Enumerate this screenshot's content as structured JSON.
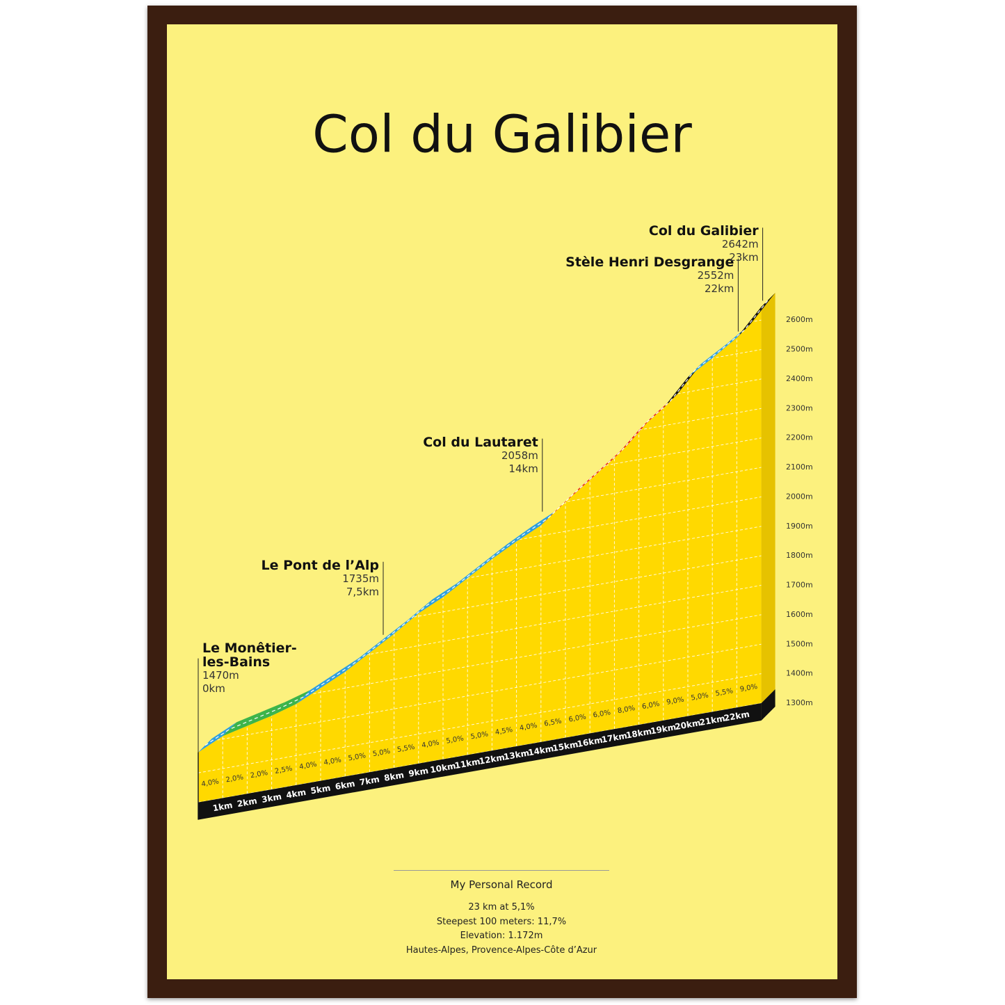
{
  "chart_data": {
    "type": "climb",
    "title": "Col du Galibier",
    "segments": {
      "values": [
        4.0,
        2.0,
        2.0,
        2.5,
        4.0,
        4.0,
        5.0,
        5.0,
        5.5,
        4.0,
        5.0,
        5.0,
        4.5,
        4.0,
        6.5,
        6.0,
        6.0,
        8.0,
        6.0,
        9.0,
        5.0,
        5.5,
        9.0
      ],
      "value_labels": [
        "4,0%",
        "2,0%",
        "2,0%",
        "2,5%",
        "4,0%",
        "4,0%",
        "5,0%",
        "5,0%",
        "5,5%",
        "4,0%",
        "5,0%",
        "5,0%",
        "4,5%",
        "4,0%",
        "6,5%",
        "6,0%",
        "6,0%",
        "8,0%",
        "6,0%",
        "9,0%",
        "5,0%",
        "5,5%",
        "9,0%"
      ],
      "colors": [
        "#2e9fdf",
        "#3cb44b",
        "#3cb44b",
        "#3cb44b",
        "#2e9fdf",
        "#2e9fdf",
        "#2e9fdf",
        "#2e9fdf",
        "#2e9fdf",
        "#2e9fdf",
        "#2e9fdf",
        "#2e9fdf",
        "#2e9fdf",
        "#2e9fdf",
        "#e52420",
        "#e52420",
        "#e52420",
        "#e52420",
        "#e52420",
        "#111111",
        "#2e9fdf",
        "#2e9fdf",
        "#111111"
      ]
    },
    "x_labels": [
      "1km",
      "2km",
      "3km",
      "4km",
      "5km",
      "6km",
      "7km",
      "8km",
      "9km",
      "10km",
      "11km",
      "12km",
      "13km",
      "14km",
      "15km",
      "16km",
      "17km",
      "18km",
      "19km",
      "20km",
      "21km",
      "22km"
    ],
    "ylim": [
      1300,
      2650
    ],
    "yticks": [
      {
        "value": 1300,
        "label": "1300m"
      },
      {
        "value": 1400,
        "label": "1400m"
      },
      {
        "value": 1500,
        "label": "1500m"
      },
      {
        "value": 1600,
        "label": "1600m"
      },
      {
        "value": 1700,
        "label": "1700m"
      },
      {
        "value": 1800,
        "label": "1800m"
      },
      {
        "value": 1900,
        "label": "1900m"
      },
      {
        "value": 2000,
        "label": "2000m"
      },
      {
        "value": 2100,
        "label": "2100m"
      },
      {
        "value": 2200,
        "label": "2200m"
      },
      {
        "value": 2300,
        "label": "2300m"
      },
      {
        "value": 2400,
        "label": "2400m"
      },
      {
        "value": 2500,
        "label": "2500m"
      },
      {
        "value": 2600,
        "label": "2600m"
      }
    ],
    "grid": true,
    "annotations": [
      {
        "name": "Le Monêtier-les-Bains",
        "elevation": {
          "value": 1470,
          "label": "1470m"
        },
        "km": {
          "value": 0,
          "label": "0km"
        }
      },
      {
        "name": "Le Pont de l’Alp",
        "elevation": {
          "value": 1735,
          "label": "1735m"
        },
        "km": {
          "value": 7.5,
          "label": "7,5km"
        }
      },
      {
        "name": "Col du Lautaret",
        "elevation": {
          "value": 2058,
          "label": "2058m"
        },
        "km": {
          "value": 14,
          "label": "14km"
        }
      },
      {
        "name": "Stèle Henri Desgrange",
        "elevation": {
          "value": 2552,
          "label": "2552m"
        },
        "km": {
          "value": 22,
          "label": "22km"
        }
      },
      {
        "name": "Col du Galibier",
        "elevation": {
          "value": 2642,
          "label": "2642m"
        },
        "km": {
          "value": 23,
          "label": "23km"
        }
      }
    ]
  },
  "footer": {
    "heading": "My Personal Record",
    "lines": [
      "23 km at 5,1%",
      "Steepest 100 meters: 11,7%",
      "Elevation: 1.172m",
      "Hautes-Alpes, Provence-Alpes-Côte d’Azur"
    ]
  }
}
